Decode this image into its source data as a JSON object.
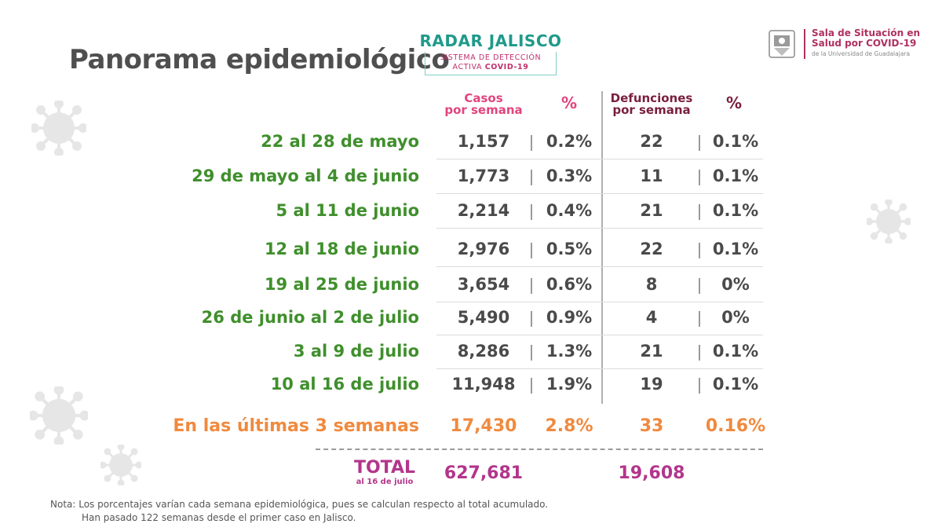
{
  "page_title": "Panorama epidemiológico",
  "radar": {
    "title": "RADAR JALISCO",
    "subtitle_line1": "SISTEMA DE DETECCIÓN",
    "subtitle_line2_a": "ACTIVA ",
    "subtitle_line2_b": "COVID-19"
  },
  "institution": {
    "line1": "Sala de Situación en",
    "line2": "Salud por COVID-19",
    "line3": "de la Universidad de Guadalajara"
  },
  "headers": {
    "casos_line1": "Casos",
    "casos_line2": "por semana",
    "pct": "%",
    "def_line1": "Defunciones",
    "def_line2": "por semana",
    "pct2": "%"
  },
  "rows": [
    {
      "label": "22 al 28 de mayo",
      "casos": "1,157",
      "pct_casos": "0.2%",
      "defunciones": "22",
      "pct_def": "0.1%"
    },
    {
      "label": "29 de mayo al 4 de junio",
      "casos": "1,773",
      "pct_casos": "0.3%",
      "defunciones": "11",
      "pct_def": "0.1%"
    },
    {
      "label": "5 al 11 de junio",
      "casos": "2,214",
      "pct_casos": "0.4%",
      "defunciones": "21",
      "pct_def": "0.1%"
    },
    {
      "label": "12 al 18 de junio",
      "casos": "2,976",
      "pct_casos": "0.5%",
      "defunciones": "22",
      "pct_def": "0.1%"
    },
    {
      "label": "19 al 25 de junio",
      "casos": "3,654",
      "pct_casos": "0.6%",
      "defunciones": "8",
      "pct_def": "0%"
    },
    {
      "label": "26 de junio al 2 de julio",
      "casos": "5,490",
      "pct_casos": "0.9%",
      "defunciones": "4",
      "pct_def": "0%"
    },
    {
      "label": "3 al 9 de julio",
      "casos": "8,286",
      "pct_casos": "1.3%",
      "defunciones": "21",
      "pct_def": "0.1%"
    },
    {
      "label": "10 al 16 de julio",
      "casos": "11,948",
      "pct_casos": "1.9%",
      "defunciones": "19",
      "pct_def": "0.1%"
    }
  ],
  "summary": {
    "label": "En las últimas 3 semanas",
    "casos": "17,430",
    "pct_casos": "2.8%",
    "defunciones": "33",
    "pct_def": "0.16%"
  },
  "total": {
    "label": "TOTAL",
    "sublabel": "al 16 de julio",
    "casos": "627,681",
    "defunciones": "19,608"
  },
  "note": {
    "line1": "Nota: Los porcentajes varían cada semana epidemiológica, pues se calculan respecto al total acumulado.",
    "line2": "Han pasado 122 semanas desde el primer caso en Jalisco."
  },
  "colors": {
    "green": "#3f8f2c",
    "orange": "#f08a3e",
    "magenta": "#b3358c",
    "pink": "#e2447e",
    "maroon": "#7a1f3d",
    "teal": "#1f9a8b"
  },
  "icons": [
    "virus-icon",
    "udg-seal-icon"
  ]
}
